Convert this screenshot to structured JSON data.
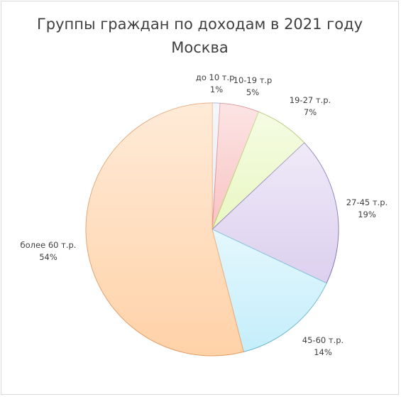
{
  "chart_data": {
    "type": "pie",
    "title": "Группы граждан по доходам в 2021 году",
    "subtitle": "Москва",
    "slices": [
      {
        "category": "до 10 т.р.",
        "value": 1,
        "label": "1%",
        "color": "#e6ecf5",
        "edge": "#9fb3d3"
      },
      {
        "category": "10-19 т.р",
        "value": 5,
        "label": "5%",
        "color": "#f9c3c3",
        "edge": "#e88a8a"
      },
      {
        "category": "19-27 т.р.",
        "value": 7,
        "label": "7%",
        "color": "#e9f7c2",
        "edge": "#b6d36a"
      },
      {
        "category": "27-45 т.р.",
        "value": 19,
        "label": "19%",
        "color": "#dcd0ef",
        "edge": "#8a78bf"
      },
      {
        "category": "45-60 т.р.",
        "value": 14,
        "label": "14%",
        "color": "#c4eefb",
        "edge": "#6ebfd9"
      },
      {
        "category": "более 60 т.р.",
        "value": 54,
        "label": "54%",
        "color": "#ffd2a8",
        "edge": "#f2a56a"
      }
    ]
  }
}
